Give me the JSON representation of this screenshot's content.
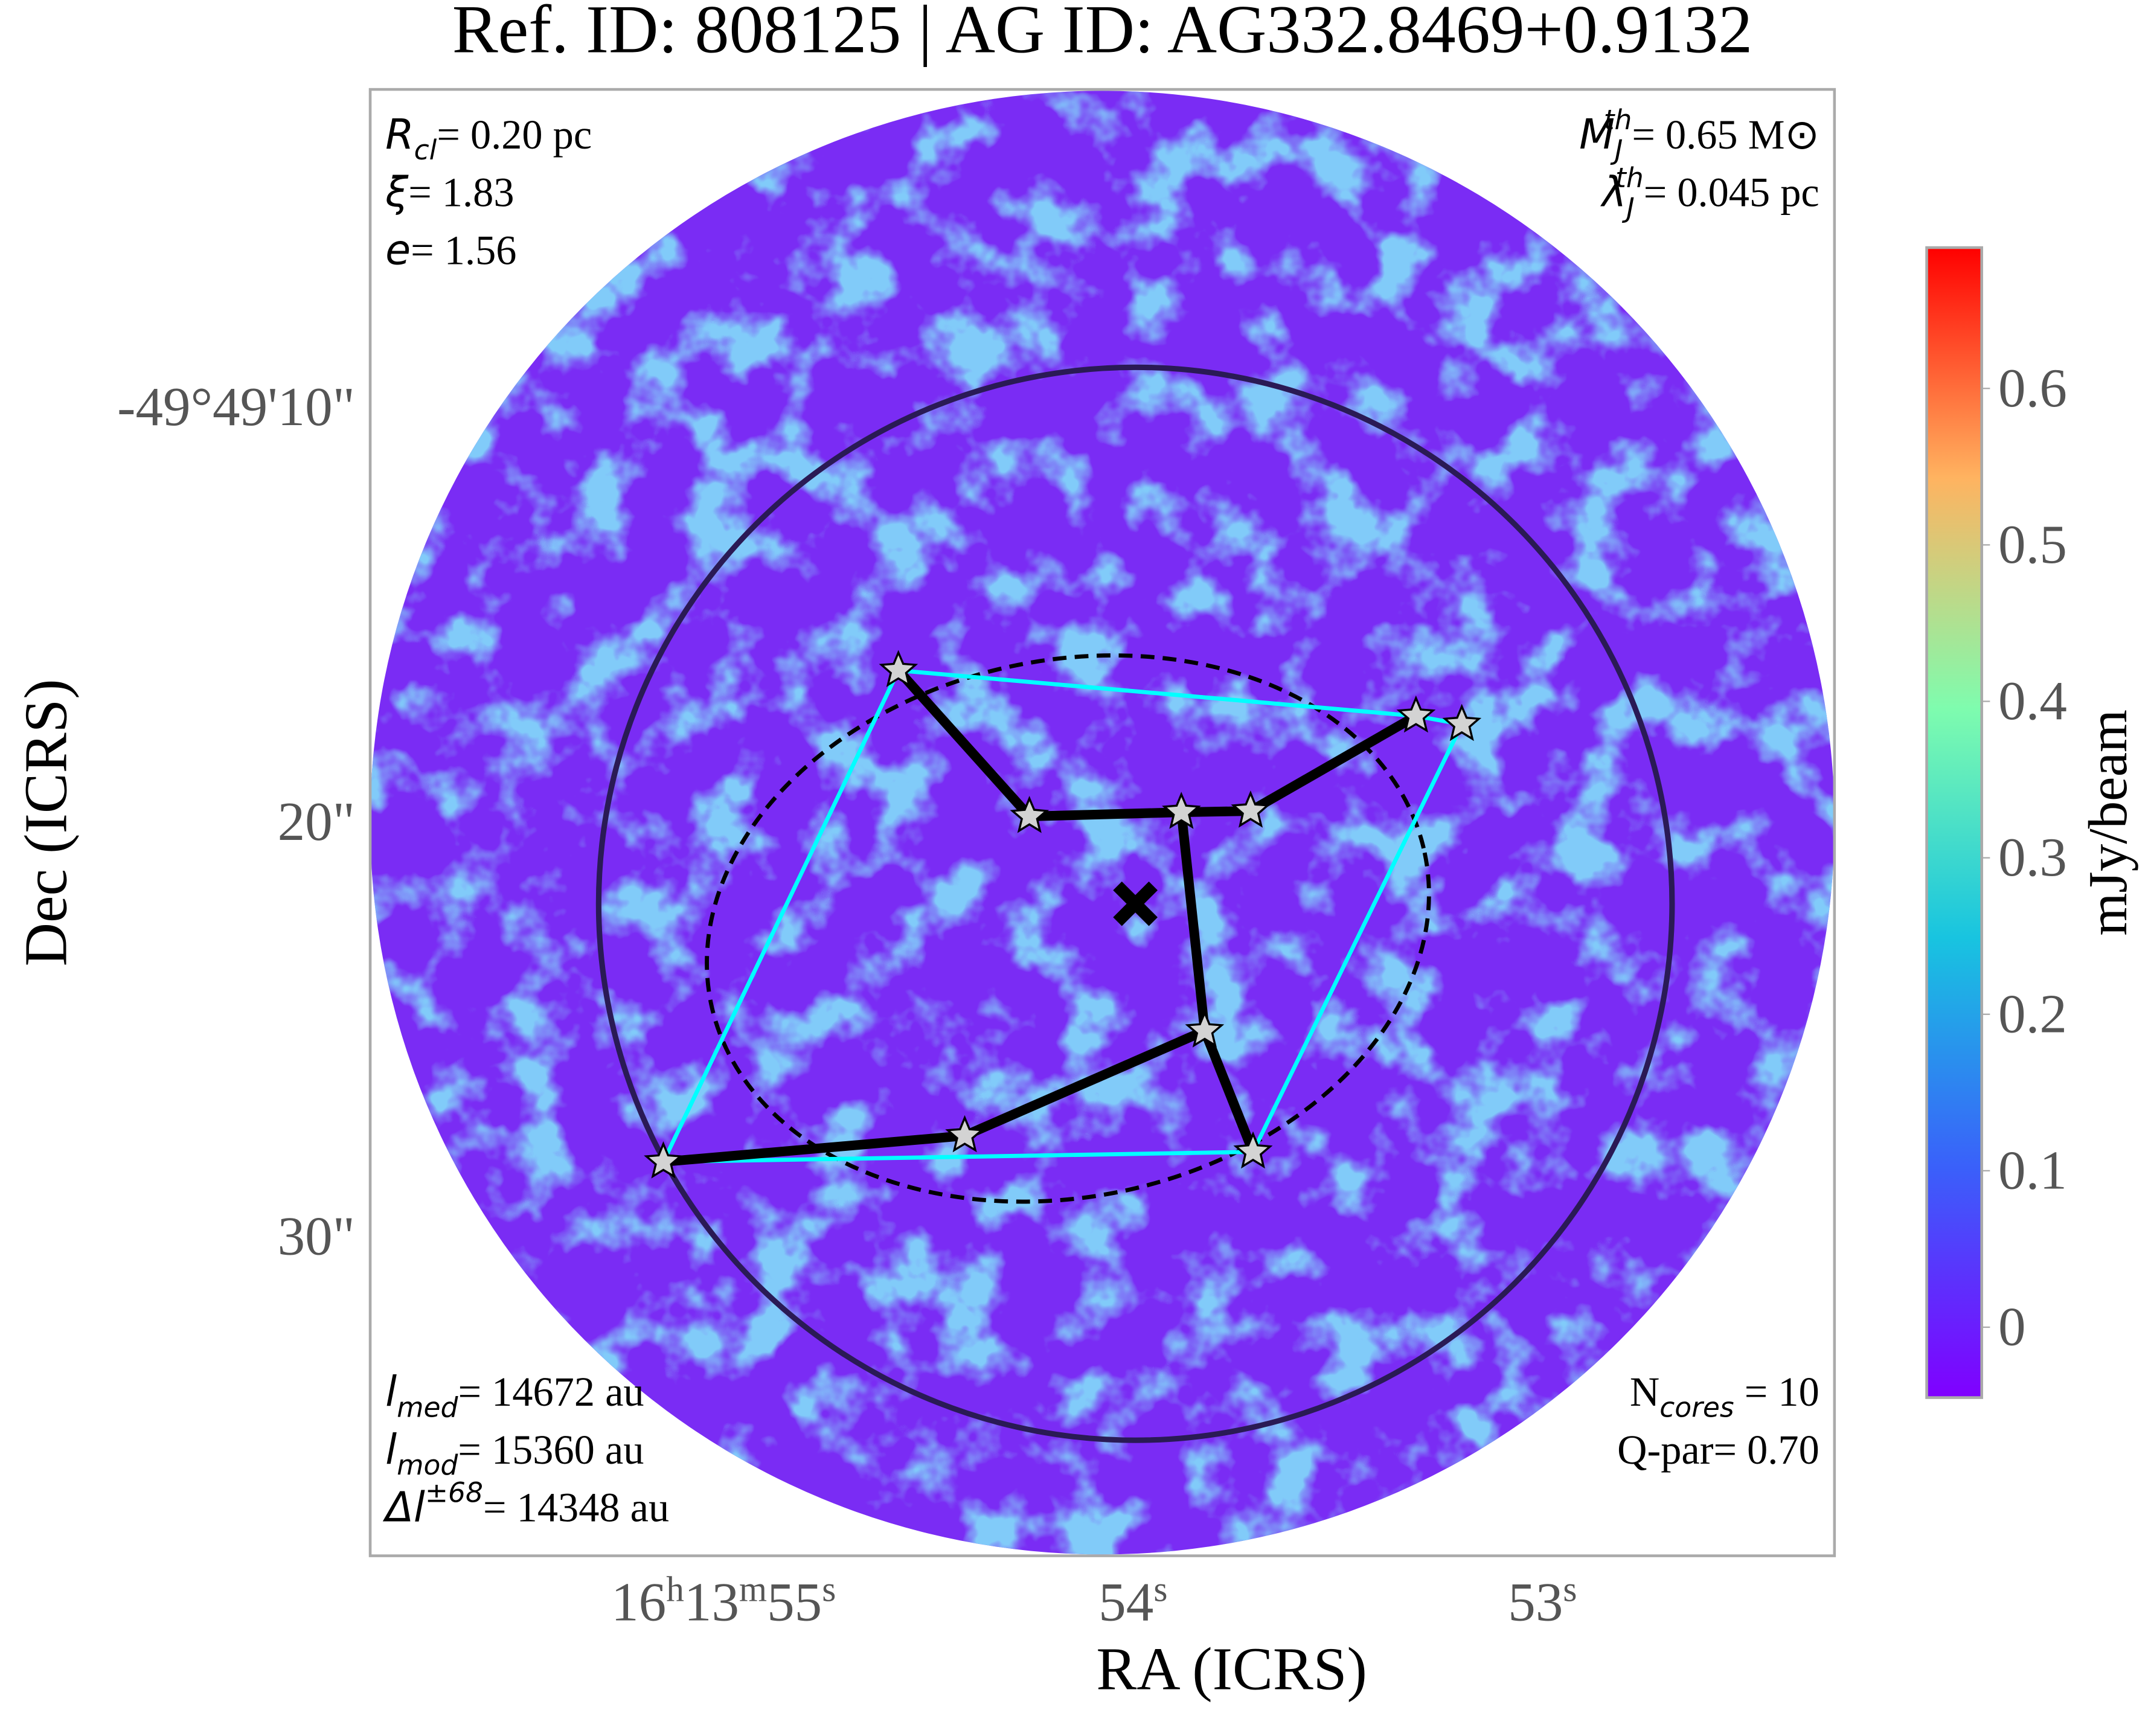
{
  "chart_data": {
    "type": "scatter",
    "title": "Ref. ID: 808125 | AG ID: AG332.8469+0.9132",
    "x_label": "RA (ICRS)",
    "y_label": "Dec (ICRS)",
    "xlim": [
      55.863,
      52.287
    ],
    "ylim": [
      37.73,
      2.37
    ],
    "xticks": [
      {
        "value": 55,
        "label": "16h13m55s"
      },
      {
        "value": 54,
        "label": "54s"
      },
      {
        "value": 53,
        "label": "53s"
      }
    ],
    "yticks": [
      {
        "value": 10,
        "label": "-49°49'10\""
      },
      {
        "value": 20,
        "label": "20\""
      },
      {
        "value": 30,
        "label": "30\""
      }
    ],
    "x": [
      54.573,
      54.253,
      53.882,
      53.713,
      53.309,
      53.197,
      53.825,
      54.411,
      55.147,
      53.707
    ],
    "values": [
      16.38,
      19.9,
      19.8,
      19.77,
      17.48,
      17.68,
      25.07,
      27.6,
      28.23,
      27.99
    ],
    "marker_color": "#d3d3d3",
    "mst": [
      [
        0,
        1
      ],
      [
        1,
        2
      ],
      [
        2,
        3
      ],
      [
        3,
        4
      ],
      [
        2,
        6
      ],
      [
        6,
        7
      ],
      [
        7,
        8
      ],
      [
        6,
        9
      ]
    ],
    "mst_color": "#000000",
    "hull": [
      0,
      4,
      5,
      9,
      8
    ],
    "hull_color": "#00ffff",
    "colorbar": {
      "label": "mJy/beam",
      "lim": [
        -0.045,
        0.69
      ],
      "ticks": [
        0.0,
        0.1,
        0.2,
        0.3,
        0.4,
        0.5,
        0.6
      ]
    },
    "annotations": {
      "top_left": [
        {
          "sym": "R",
          "sub": "cl",
          "rest": "= 0.20 pc"
        },
        {
          "sym": "ξ",
          "rest": "= 1.83"
        },
        {
          "sym": "e",
          "rest": "= 1.56"
        }
      ],
      "top_right": [
        {
          "sym": "M",
          "sub": "J",
          "sup": "th",
          "rest": "= 0.65 M⊙"
        },
        {
          "sym": "λ",
          "sub": "J",
          "sup": "th",
          "rest": "= 0.045 pc"
        }
      ],
      "bottom_left": [
        {
          "sym": "l",
          "sub": "med",
          "rest": "= 14672 au"
        },
        {
          "sym": "l",
          "sub": "mod",
          "rest": "= 15360 au"
        },
        {
          "sym": "Δl",
          "sup": "±68",
          "rest": "= 14348 au"
        }
      ],
      "bottom_right": [
        {
          "sym": "N",
          "sub": "cores",
          "rest": " = 10"
        },
        {
          "rest": "Q-par= 0.70"
        }
      ]
    }
  }
}
